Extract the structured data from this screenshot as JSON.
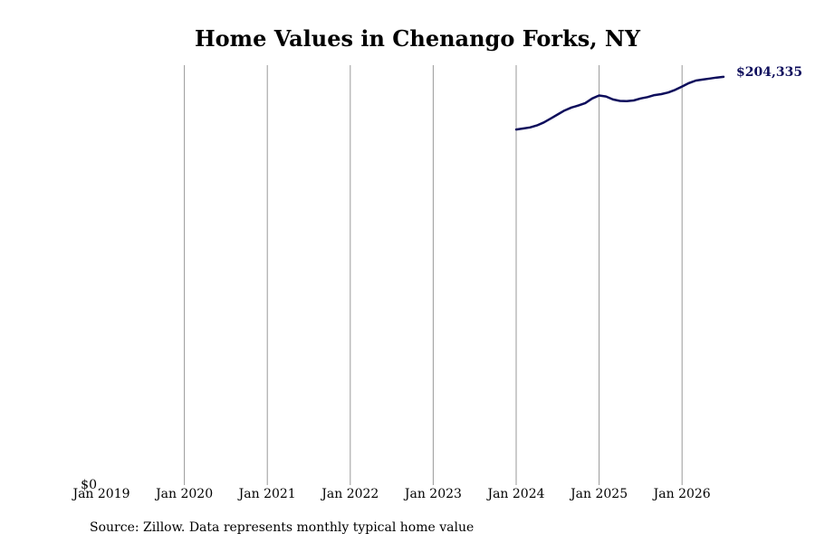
{
  "chart_data": {
    "type": "line",
    "title": "Home Values in Chenango Forks, NY",
    "xlabel": "",
    "ylabel": "",
    "x_ticks": [
      "Jan 2019",
      "Jan 2020",
      "Jan 2021",
      "Jan 2022",
      "Jan 2023",
      "Jan 2024",
      "Jan 2025",
      "Jan 2026"
    ],
    "y_ticks": [
      "$0"
    ],
    "xlim": [
      "2019-01",
      "2026-07"
    ],
    "ylim": [
      0,
      212000
    ],
    "grid": "vertical",
    "line_color": "#0d0d5c",
    "x": [
      "2024-01",
      "2024-02",
      "2024-03",
      "2024-04",
      "2024-05",
      "2024-06",
      "2024-07",
      "2024-08",
      "2024-09",
      "2024-10",
      "2024-11",
      "2024-12",
      "2025-01",
      "2025-02",
      "2025-03",
      "2025-04",
      "2025-05",
      "2025-06",
      "2025-07",
      "2025-08",
      "2025-09",
      "2025-10",
      "2025-11",
      "2025-12",
      "2026-01",
      "2026-02",
      "2026-03",
      "2026-04",
      "2026-05",
      "2026-06",
      "2026-07"
    ],
    "values": [
      178000,
      178500,
      179000,
      180000,
      181500,
      183500,
      185500,
      187500,
      189000,
      190000,
      191200,
      193500,
      195000,
      194500,
      193000,
      192300,
      192200,
      192500,
      193500,
      194200,
      195200,
      195700,
      196500,
      197800,
      199500,
      201200,
      202500,
      203000,
      203500,
      204000,
      204335
    ],
    "end_label": "$204,335"
  },
  "source_note": "Source: Zillow. Data represents monthly typical home value"
}
